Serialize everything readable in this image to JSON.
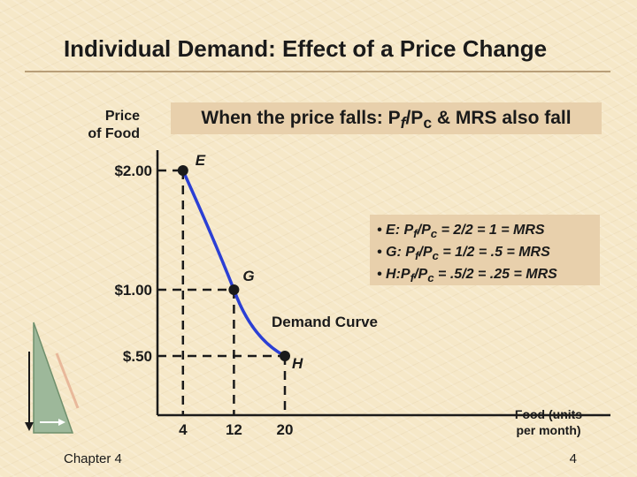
{
  "title": "Individual Demand: Effect of a Price Change",
  "ylabel_line1": "Price",
  "ylabel_line2": "of Food",
  "xlabel_line1": "Food (units",
  "xlabel_line2": "per month)",
  "banner": {
    "prefix": "When the price falls: P",
    "sub1": "f",
    "mid": "/P",
    "sub2": "c",
    "suffix": " & MRS also fall"
  },
  "info_lines": [
    {
      "pre": "• E: P",
      "s1": "f",
      "mid": "/P",
      "s2": "c",
      "post": " = 2/2 = 1 = MRS"
    },
    {
      "pre": "• G: P",
      "s1": "f",
      "mid": "/P",
      "s2": "c",
      "post": " = 1/2 = .5 = MRS"
    },
    {
      "pre": "• H:P",
      "s1": "f",
      "mid": "/P",
      "s2": "c",
      "post": " = .5/2 = .25 = MRS"
    }
  ],
  "curve_label": "Demand Curve",
  "footer": {
    "left": "Chapter 4",
    "right": "4"
  },
  "colors": {
    "curve": "#2b3fd4",
    "point": "#1a1a1a",
    "banner_bg": "#e8d0ac"
  },
  "chart_data": {
    "type": "line",
    "title": "Individual Demand: Effect of a Price Change",
    "xlabel": "Food (units per month)",
    "ylabel": "Price of Food",
    "x_ticks": [
      {
        "value": 4,
        "label": "4"
      },
      {
        "value": 12,
        "label": "12"
      },
      {
        "value": 20,
        "label": "20"
      }
    ],
    "y_ticks": [
      {
        "value": 2.0,
        "label": "$2.00"
      },
      {
        "value": 1.0,
        "label": "$1.00"
      },
      {
        "value": 0.5,
        "label": "$.50"
      }
    ],
    "points": [
      {
        "label": "E",
        "x": 4,
        "y": 2.0
      },
      {
        "label": "G",
        "x": 12,
        "y": 1.0
      },
      {
        "label": "H",
        "x": 20,
        "y": 0.5
      }
    ],
    "series": [
      {
        "name": "Demand Curve",
        "x": [
          4,
          12,
          20
        ],
        "y": [
          2.0,
          1.0,
          0.5
        ]
      }
    ]
  }
}
